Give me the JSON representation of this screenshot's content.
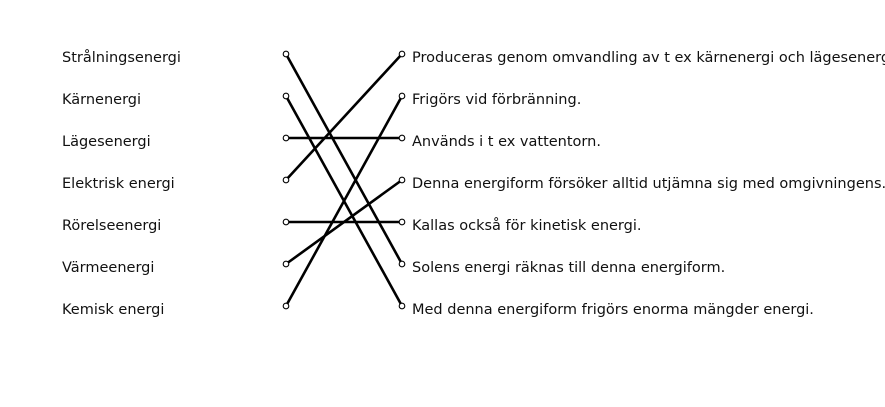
{
  "exercise": {
    "terms": [
      "Strålningsenergi",
      "Kärnenergi",
      "Lägesenergi",
      "Elektrisk energi",
      "Rörelseenergi",
      "Värmeenergi",
      "Kemisk energi"
    ],
    "descriptions": [
      "Produceras genom omvandling av t ex kärnenergi och lägesenergi.",
      "Frigörs vid förbränning.",
      "Används i t ex vattentorn.",
      "Denna energiform försöker alltid utjämna sig med omgivningens.",
      "Kallas också för kinetisk energi.",
      "Solens energi räknas till denna energiform.",
      "Med denna energiform frigörs enorma mängder energi."
    ],
    "matches": [
      [
        0,
        5
      ],
      [
        1,
        6
      ],
      [
        2,
        2
      ],
      [
        3,
        0
      ],
      [
        4,
        4
      ],
      [
        5,
        3
      ],
      [
        6,
        1
      ]
    ],
    "line_color": "#000000"
  }
}
